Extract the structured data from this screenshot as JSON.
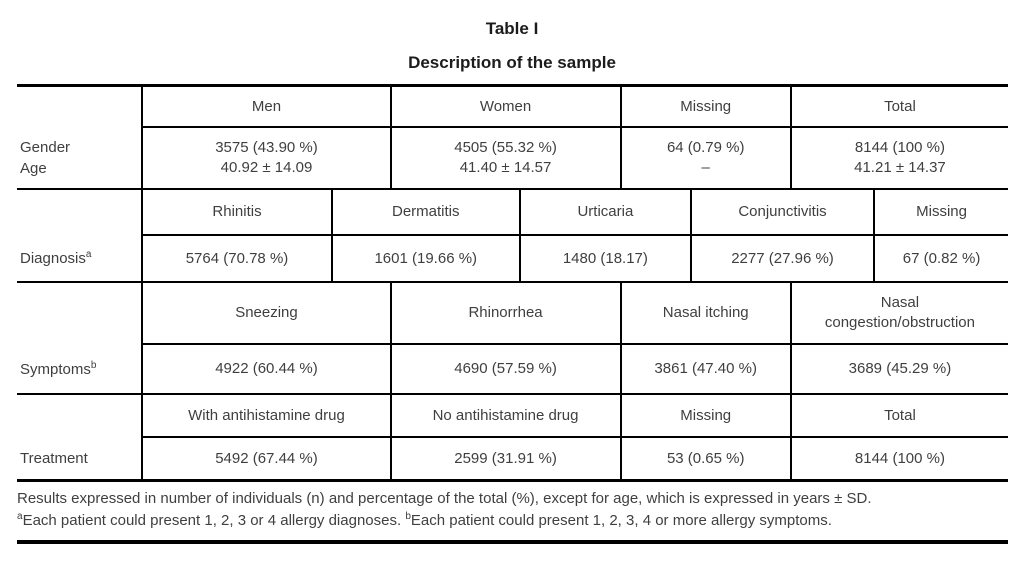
{
  "title": "Table I",
  "subtitle": "Description of the sample",
  "sections": {
    "gender": {
      "label_line1": "Gender",
      "label_line2": "Age",
      "col1": {
        "header": "Men",
        "v1": "3575 (43.90 %)",
        "v2": "40.92 ± 14.09"
      },
      "col2": {
        "header": "Women",
        "v1": "4505 (55.32 %)",
        "v2": "41.40 ± 14.57"
      },
      "col3": {
        "header": "Missing",
        "v1": "64 (0.79 %)",
        "v2": "–"
      },
      "col4": {
        "header": "Total",
        "v1": "8144 (100 %)",
        "v2": "41.21 ± 14.37"
      }
    },
    "diagnosis": {
      "label": "Diagnosis",
      "label_sup": "a",
      "col1": {
        "header": "Rhinitis",
        "value": "5764 (70.78 %)"
      },
      "col2": {
        "header": "Dermatitis",
        "value": "1601 (19.66 %)"
      },
      "col3": {
        "header": "Urticaria",
        "value": "1480 (18.17)"
      },
      "col4": {
        "header": "Conjunctivitis",
        "value": "2277 (27.96 %)"
      },
      "col5": {
        "header": "Missing",
        "value": "67 (0.82 %)"
      }
    },
    "symptoms": {
      "label": "Symptoms",
      "label_sup": "b",
      "col1": {
        "header": "Sneezing",
        "value": "4922 (60.44 %)"
      },
      "col2": {
        "header": "Rhinorrhea",
        "value": "4690 (57.59 %)"
      },
      "col3": {
        "header": "Nasal itching",
        "value": "3861 (47.40 %)"
      },
      "col4": {
        "header": "Nasal congestion/obstruction",
        "value": "3689 (45.29 %)"
      }
    },
    "treatment": {
      "label": "Treatment",
      "col1": {
        "header": "With antihistamine drug",
        "value": "5492 (67.44 %)"
      },
      "col2": {
        "header": "No antihistamine drug",
        "value": "2599 (31.91 %)"
      },
      "col3": {
        "header": "Missing",
        "value": "53 (0.65 %)"
      },
      "col4": {
        "header": "Total",
        "value": "8144 (100 %)"
      }
    }
  },
  "footnotes": {
    "line1": "Results expressed in number of individuals (n) and percentage of the total (%), except for age, which is expressed in years ± SD.",
    "line2_sup_a": "a",
    "line2_text_a": "Each patient could present 1, 2, 3 or 4 allergy diagnoses. ",
    "line2_sup_b": "b",
    "line2_text_b": "Each patient could present 1, 2, 3, 4 or more allergy symptoms."
  }
}
